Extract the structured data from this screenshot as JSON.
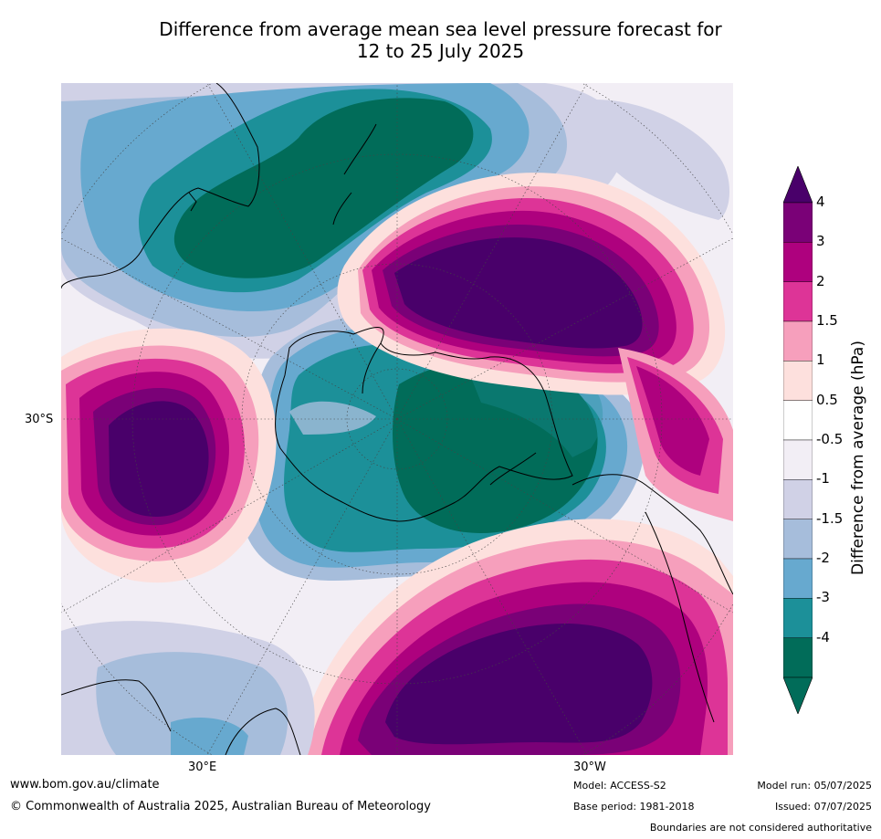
{
  "title": {
    "line1": "Difference from average mean sea level pressure forecast for",
    "line2": "12 to 25 July 2025"
  },
  "map": {
    "lat_label": "30°S",
    "lon_labels": [
      "30°E",
      "30°W"
    ]
  },
  "colorbar": {
    "title": "Difference from average (hPa)",
    "ticks": [
      "4",
      "3",
      "2",
      "1.5",
      "1",
      "0.5",
      "-0.5",
      "-1",
      "-1.5",
      "-2",
      "-3",
      "-4"
    ],
    "colors": [
      "#7a0177",
      "#ae017e",
      "#dd3497",
      "#f69fbc",
      "#fde0dd",
      "#ffffff",
      "#f2eef5",
      "#d0d1e6",
      "#a6bddb",
      "#67a9cf",
      "#1c9099",
      "#016c59"
    ],
    "top_arrow_color": "#49006a",
    "bottom_arrow_color": "#016c59"
  },
  "footer": {
    "website": "www.bom.gov.au/climate",
    "copyright": "© Commonwealth of Australia 2025, Australian Bureau of Meteorology",
    "model": "Model: ACCESS-S2",
    "base_period": "Base period: 1981-2018",
    "model_run": "Model run: 05/07/2025",
    "issued": "Issued: 07/07/2025",
    "disclaimer": "Boundaries are not considered authoritative"
  }
}
